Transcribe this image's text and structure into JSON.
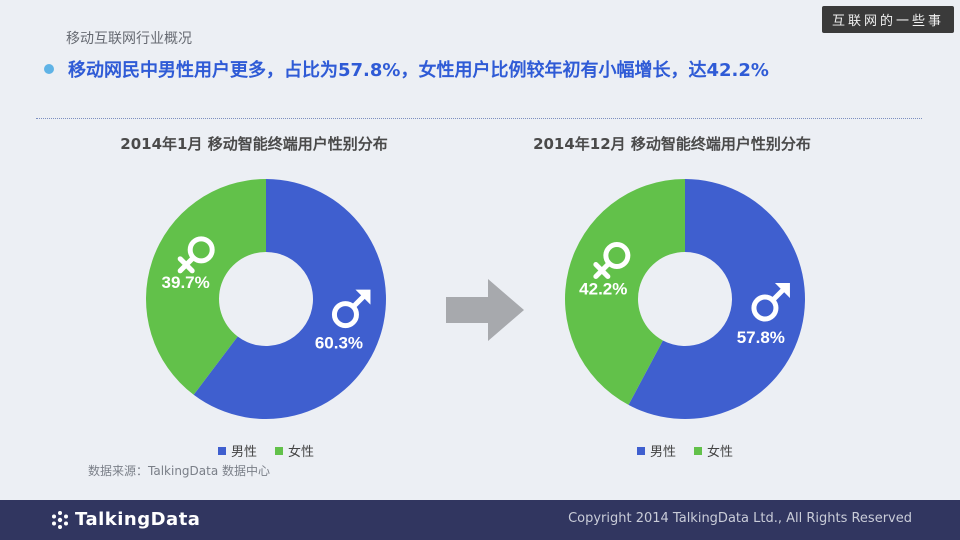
{
  "watermark": "互联网的一些事",
  "section_title": "移动互联网行业概况",
  "headline": "移动网民中男性用户更多，占比为57.8%，女性用户比例较年初有小幅增长，达42.2%",
  "chart_data": [
    {
      "type": "pie",
      "title": "2014年1月 移动智能终端用户性别分布",
      "categories": [
        "男性",
        "女性"
      ],
      "values": [
        60.3,
        39.7
      ],
      "value_labels": [
        "60.3%",
        "39.7%"
      ],
      "colors": [
        "#3f5fcf",
        "#62c14a"
      ],
      "donut": true,
      "legend_position": "bottom"
    },
    {
      "type": "pie",
      "title": "2014年12月 移动智能终端用户性别分布",
      "categories": [
        "男性",
        "女性"
      ],
      "values": [
        57.8,
        42.2
      ],
      "value_labels": [
        "57.8%",
        "42.2%"
      ],
      "colors": [
        "#3f5fcf",
        "#62c14a"
      ],
      "donut": true,
      "legend_position": "bottom"
    }
  ],
  "legend": {
    "male": "男性",
    "female": "女性"
  },
  "icons": {
    "male": "male-symbol-icon",
    "female": "female-symbol-icon",
    "arrow": "right-arrow-icon",
    "bullet": "bullet-dot-icon"
  },
  "source": "数据来源：TalkingData 数据中心",
  "footer": {
    "logo": "TalkingData",
    "copyright": "Copyright 2014 TalkingData Ltd., All Rights Reserved"
  }
}
